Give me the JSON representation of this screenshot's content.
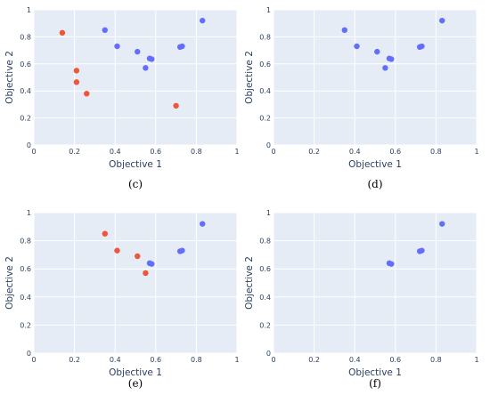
{
  "colors": {
    "plot_bg": "#e5ecf6",
    "grid": "#ffffff",
    "blue": "#636efa",
    "red": "#ef553b",
    "text": "#2a3f5f"
  },
  "chart_data": [
    {
      "type": "scatter",
      "panel_label": "(c)",
      "xlabel": "Objective 1",
      "ylabel": "Objective 2",
      "xlim": [
        0,
        1
      ],
      "ylim": [
        0,
        1
      ],
      "xticks": [
        "0",
        "0.2",
        "0.4",
        "0.6",
        "0.8",
        "1"
      ],
      "yticks": [
        "0",
        "0.2",
        "0.4",
        "0.6",
        "0.8",
        "1"
      ],
      "grid": true,
      "series": [
        {
          "color": "#636efa",
          "x": [
            0.35,
            0.41,
            0.51,
            0.55,
            0.57,
            0.58,
            0.72,
            0.73,
            0.83
          ],
          "y": [
            0.85,
            0.73,
            0.69,
            0.57,
            0.64,
            0.635,
            0.725,
            0.73,
            0.92
          ]
        },
        {
          "color": "#ef553b",
          "x": [
            0.14,
            0.21,
            0.21,
            0.26,
            0.7
          ],
          "y": [
            0.83,
            0.55,
            0.465,
            0.38,
            0.29
          ]
        }
      ]
    },
    {
      "type": "scatter",
      "panel_label": "(d)",
      "xlabel": "Objective 1",
      "ylabel": "Objective 2",
      "xlim": [
        0,
        1
      ],
      "ylim": [
        0,
        1
      ],
      "xticks": [
        "0",
        "0.2",
        "0.4",
        "0.6",
        "0.8",
        "1"
      ],
      "yticks": [
        "0",
        "0.2",
        "0.4",
        "0.6",
        "0.8",
        "1"
      ],
      "grid": true,
      "series": [
        {
          "color": "#636efa",
          "x": [
            0.35,
            0.41,
            0.51,
            0.55,
            0.57,
            0.58,
            0.72,
            0.73,
            0.83
          ],
          "y": [
            0.85,
            0.73,
            0.69,
            0.57,
            0.64,
            0.635,
            0.725,
            0.73,
            0.92
          ]
        }
      ]
    },
    {
      "type": "scatter",
      "panel_label": "(e)",
      "xlabel": "Objective 1",
      "ylabel": "Objective 2",
      "xlim": [
        0,
        1
      ],
      "ylim": [
        0,
        1
      ],
      "xticks": [
        "0",
        "0.2",
        "0.4",
        "0.6",
        "0.8",
        "1"
      ],
      "yticks": [
        "0",
        "0.2",
        "0.4",
        "0.6",
        "0.8",
        "1"
      ],
      "grid": true,
      "series": [
        {
          "color": "#636efa",
          "x": [
            0.57,
            0.58,
            0.72,
            0.73,
            0.83
          ],
          "y": [
            0.64,
            0.635,
            0.725,
            0.73,
            0.92
          ]
        },
        {
          "color": "#ef553b",
          "x": [
            0.35,
            0.41,
            0.51,
            0.55
          ],
          "y": [
            0.85,
            0.73,
            0.69,
            0.57
          ]
        }
      ]
    },
    {
      "type": "scatter",
      "panel_label": "(f)",
      "xlabel": "Objective 1",
      "ylabel": "Objective 2",
      "xlim": [
        0,
        1
      ],
      "ylim": [
        0,
        1
      ],
      "xticks": [
        "0",
        "0.2",
        "0.4",
        "0.6",
        "0.8",
        "1"
      ],
      "yticks": [
        "0",
        "0.2",
        "0.4",
        "0.6",
        "0.8",
        "1"
      ],
      "grid": true,
      "series": [
        {
          "color": "#636efa",
          "x": [
            0.57,
            0.58,
            0.72,
            0.73,
            0.83
          ],
          "y": [
            0.64,
            0.635,
            0.725,
            0.73,
            0.92
          ]
        }
      ]
    }
  ]
}
